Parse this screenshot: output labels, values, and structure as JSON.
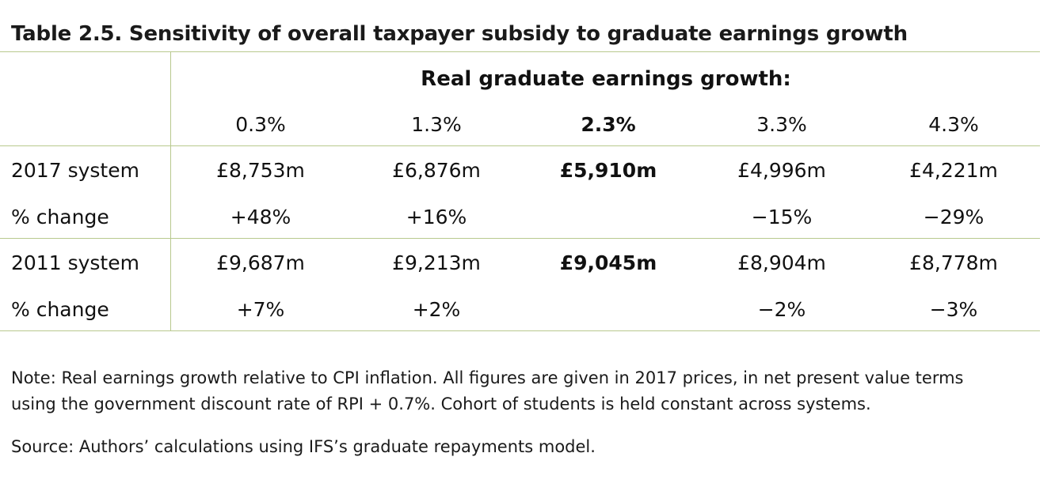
{
  "title": "Table 2.5. Sensitivity of overall taxpayer subsidy to graduate earnings growth",
  "table": {
    "span_header": "Real graduate earnings growth:",
    "columns": [
      "0.3%",
      "1.3%",
      "2.3%",
      "3.3%",
      "4.3%"
    ],
    "rows": [
      {
        "label": "2017 system",
        "values": [
          "£8,753m",
          "£6,876m",
          "£5,910m",
          "£4,996m",
          "£4,221m"
        ],
        "change_label": "% change",
        "changes": [
          "+48%",
          "+16%",
          "",
          "−15%",
          "−29%"
        ]
      },
      {
        "label": "2011 system",
        "values": [
          "£9,687m",
          "£9,213m",
          "£9,045m",
          "£8,904m",
          "£8,778m"
        ],
        "change_label": "% change",
        "changes": [
          "+7%",
          "+2%",
          "",
          "−2%",
          "−3%"
        ]
      }
    ]
  },
  "note": "Note: Real earnings growth relative to CPI inflation. All figures are given in 2017 prices, in net present value terms using the government discount rate of RPI + 0.7%. Cohort of students is held constant across systems.",
  "source": "Source: Authors’ calculations using IFS’s graduate repayments model.",
  "colors": {
    "rule": "#b8c98e",
    "text": "#111111"
  }
}
